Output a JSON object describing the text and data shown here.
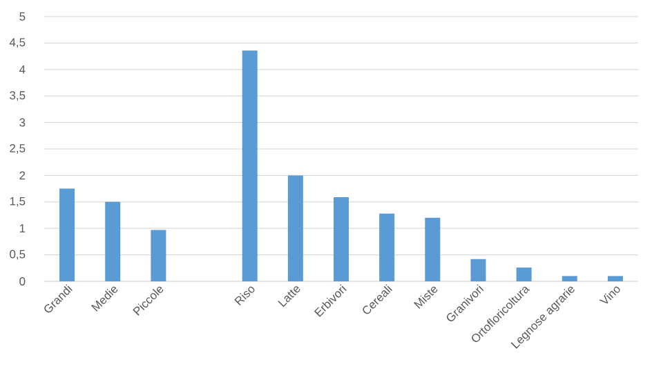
{
  "chart_data": {
    "type": "bar",
    "categories": [
      "Grandi",
      "Medie",
      "Piccole",
      null,
      "Riso",
      "Latte",
      "Erbivori",
      "Cereali",
      "Miste",
      "Granivori",
      "Ortofloricoltura",
      "Legnose agrarie",
      "Vino"
    ],
    "values": [
      1.75,
      1.5,
      0.97,
      null,
      4.36,
      2.0,
      1.59,
      1.28,
      1.2,
      0.42,
      0.26,
      0.1,
      0.1
    ],
    "color": "#5b9bd5",
    "ylim": [
      0,
      5
    ],
    "yticks": [
      0,
      {
        "value": 0.5,
        "label": "0,5"
      },
      1,
      {
        "value": 1.5,
        "label": "1,5"
      },
      2,
      {
        "value": 2.5,
        "label": "2,5"
      },
      3,
      {
        "value": 3.5,
        "label": "3,5"
      },
      4,
      {
        "value": 4.5,
        "label": "4,5"
      },
      5
    ],
    "grid": "y"
  }
}
